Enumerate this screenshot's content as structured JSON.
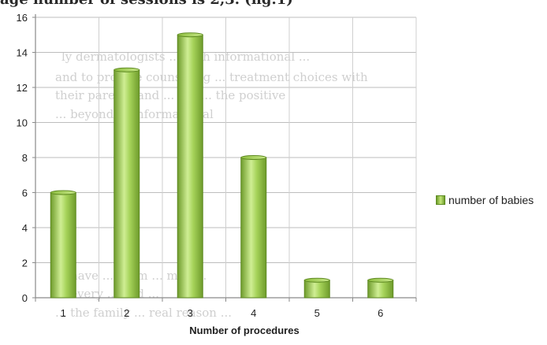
{
  "header_fragment": "age number of sessions is 2,3.  (fig.1)",
  "background_text": [
    "ly dermatologists ... with informational ...",
    "and to provide counseling ... treatment choices with",
    "their parents and ... fits ... the positive",
    "... beyond ... informational",
    "... have ... them ... may ...",
    "... every ... and ...",
    "... the family ... real reason ..."
  ],
  "chart_data": {
    "type": "bar",
    "title": "",
    "xlabel": "Number of procedures",
    "ylabel": "",
    "categories": [
      "1",
      "2",
      "3",
      "4",
      "5",
      "6"
    ],
    "series": [
      {
        "name": "number of babies",
        "values": [
          6,
          13,
          15,
          8,
          1,
          1
        ]
      }
    ],
    "ylim": [
      0,
      16
    ],
    "yticks": [
      0,
      2,
      4,
      6,
      8,
      10,
      12,
      14,
      16
    ],
    "grid": true,
    "legend_position": "right",
    "colors": {
      "bar": "#9ccb4a",
      "bar_dark": "#6e9b2b",
      "bar_light": "#d2ef9a",
      "grid": "#bdbdbd"
    }
  }
}
